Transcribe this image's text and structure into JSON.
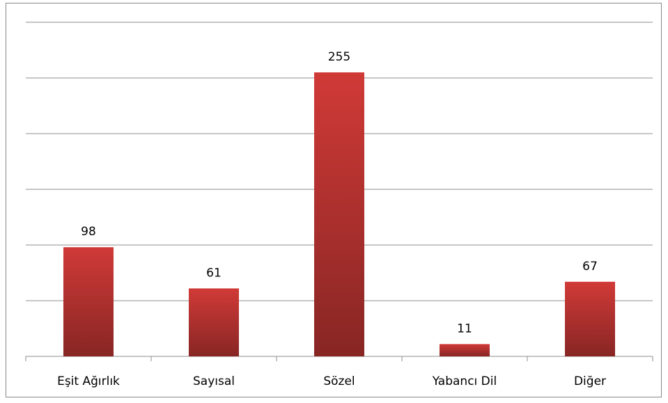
{
  "chart_data": {
    "type": "bar",
    "categories": [
      "Eşit Ağırlık",
      "Sayısal",
      "Sözel",
      "Yabancı Dil",
      "Diğer"
    ],
    "values": [
      98,
      61,
      255,
      11,
      67
    ],
    "color": "#d03a37",
    "ylim": [
      0,
      300
    ],
    "yticks": [
      0,
      50,
      100,
      150,
      200,
      250,
      300
    ],
    "grid": true
  }
}
